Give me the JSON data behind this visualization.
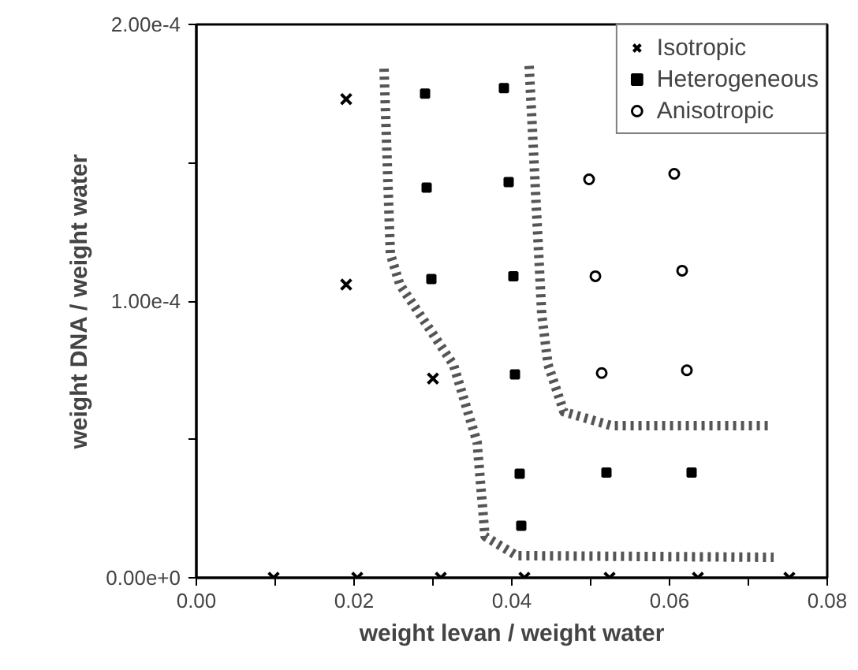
{
  "chart_data": {
    "type": "scatter",
    "xlabel": "weight levan / weight water",
    "ylabel": "weight DNA / weight water",
    "xlim": [
      0,
      0.08
    ],
    "ylim": [
      0,
      0.0002
    ],
    "xticks": [
      {
        "value": 0,
        "label": "0.00"
      },
      {
        "value": 0.01,
        "label": null
      },
      {
        "value": 0.02,
        "label": "0.02"
      },
      {
        "value": 0.03,
        "label": null
      },
      {
        "value": 0.04,
        "label": "0.04"
      },
      {
        "value": 0.05,
        "label": null
      },
      {
        "value": 0.06,
        "label": "0.06"
      },
      {
        "value": 0.07,
        "label": null
      },
      {
        "value": 0.08,
        "label": "0.08"
      }
    ],
    "yticks": [
      {
        "value": 0,
        "label": "0.00e+0"
      },
      {
        "value": 5e-05,
        "label": null
      },
      {
        "value": 0.0001,
        "label": "1.00e-4"
      },
      {
        "value": 0.00015,
        "label": null
      },
      {
        "value": 0.0002,
        "label": "2.00e-4"
      }
    ],
    "grid": false,
    "legend": "top right",
    "series": [
      {
        "type": "line",
        "color": "#555555",
        "marker": "none",
        "line_style": "dashed",
        "x": [
          0.0238,
          0.0246,
          0.0258,
          0.0326,
          0.0356,
          0.0366,
          0.0406,
          0.0732
        ],
        "values": [
          0.000184,
          0.000117,
          0.000106,
          7.7e-05,
          4.9e-05,
          1.5e-05,
          8e-06,
          7.4e-06
        ]
      },
      {
        "type": "line",
        "color": "#555555",
        "marker": "none",
        "line_style": "dashed",
        "x": [
          0.0422,
          0.0438,
          0.0446,
          0.0466,
          0.0526,
          0.0728
        ],
        "values": [
          0.000185,
          9.5e-05,
          7.7e-05,
          6e-05,
          5.5e-05,
          5.5e-05
        ]
      },
      {
        "name": "Isotropic",
        "marker": "cross",
        "color": "#000000",
        "x": [
          0.019,
          0.019,
          0.03,
          0.0098,
          0.0204,
          0.031,
          0.0416,
          0.0524,
          0.0636,
          0.0752
        ],
        "values": [
          0.000173,
          0.000106,
          7.2e-05,
          0,
          0,
          0,
          0,
          0,
          0,
          0
        ]
      },
      {
        "name": "Heterogeneous",
        "marker": "square",
        "color": "#000000",
        "x": [
          0.029,
          0.0292,
          0.0298,
          0.039,
          0.0396,
          0.0402,
          0.0404,
          0.041,
          0.0412,
          0.052,
          0.0628
        ],
        "values": [
          0.000175,
          0.000141,
          0.000108,
          0.000177,
          0.000143,
          0.000109,
          7.35e-05,
          3.76e-05,
          1.88e-05,
          3.8e-05,
          3.8e-05
        ]
      },
      {
        "name": "Anisotropic",
        "marker": "circle",
        "color": "#000000",
        "x": [
          0.0498,
          0.0606,
          0.0506,
          0.0616,
          0.0514,
          0.0622
        ],
        "values": [
          0.000144,
          0.000146,
          0.000109,
          0.000111,
          7.4e-05,
          7.5e-05
        ]
      }
    ]
  }
}
